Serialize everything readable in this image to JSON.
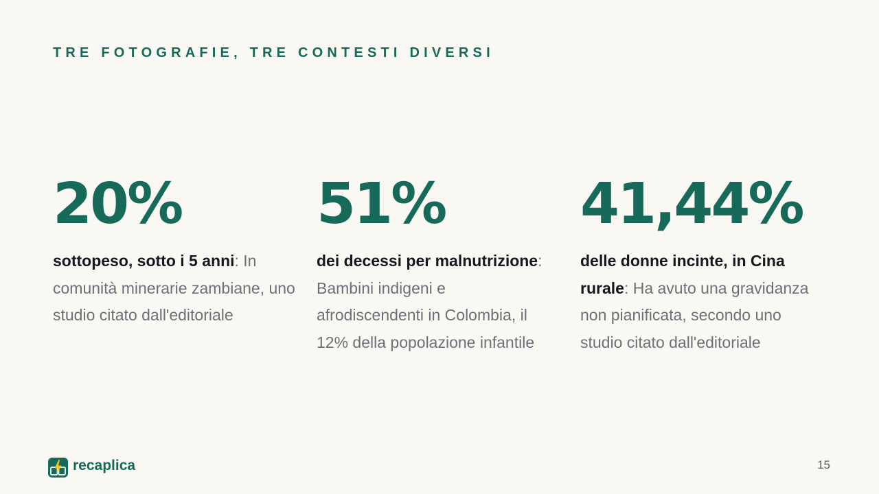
{
  "slide": {
    "kicker": "TRE FOTOGRAFIE, TRE CONTESTI DIVERSI",
    "page_number": "15"
  },
  "stats": [
    {
      "value": "20%",
      "label": "sottopeso, sotto i 5 anni",
      "separator": ": ",
      "description": "In comunità minerarie zambiane, uno studio citato dall'editoriale"
    },
    {
      "value": "51%",
      "label": "dei decessi per malnutrizione",
      "separator": ": ",
      "description": "Bambini indigeni e afrodiscendenti in Colombia, il 12% della popolazione infantile"
    },
    {
      "value": "41,44%",
      "label": "delle donne incinte, in Cina rurale",
      "separator": ": ",
      "description": "Ha avuto una gravidanza non pianificata, secondo uno studio citato dall'editoriale"
    }
  ],
  "brand": {
    "name": "recaplica",
    "icon": "bolt-book-icon",
    "color": "#17695a",
    "accent": "#f2c230"
  }
}
